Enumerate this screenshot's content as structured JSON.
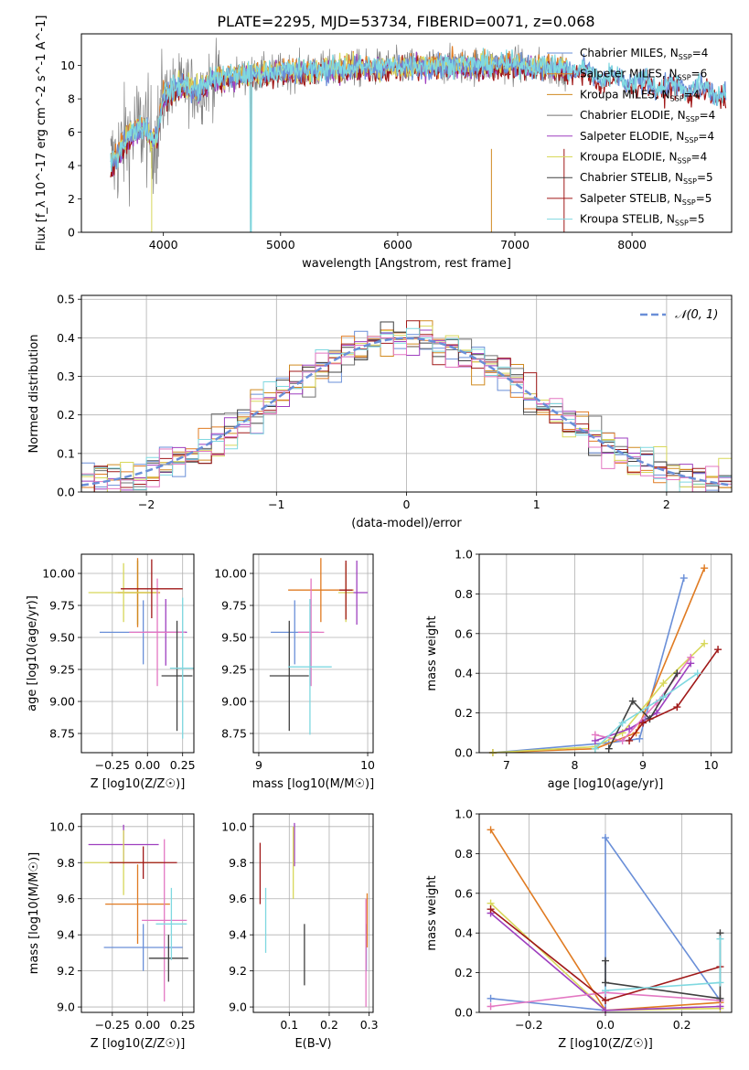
{
  "figure": {
    "title": "PLATE=2295, MJD=53734, FIBERID=0071, z=0.068"
  },
  "legend_colors": [
    "#6a8fd8",
    "#e07b22",
    "#d08a20",
    "#707070",
    "#9e3fbf",
    "#d8d85a",
    "#404040",
    "#a01818",
    "#7fd8e0"
  ],
  "chart_data": [
    {
      "id": "spectrum",
      "type": "line",
      "title": "PLATE=2295, MJD=53734, FIBERID=0071, z=0.068",
      "xlabel": "wavelength [Angstrom, rest frame]",
      "ylabel": "Flux [f_λ 10^-17 erg cm^-2 s^-1 A^-1]",
      "xlim": [
        3300,
        8850
      ],
      "ylim": [
        0,
        11.9
      ],
      "xticks": [
        4000,
        5000,
        6000,
        7000,
        8000
      ],
      "yticks": [
        0,
        2,
        4,
        6,
        8,
        10
      ],
      "grid": false,
      "legend_position": "upper-right",
      "series": [
        {
          "name": "Chabrier MILES, N_SSP=4",
          "color": "#6a8fd8"
        },
        {
          "name": "Salpeter MILES, N_SSP=6",
          "color": "#e07b22"
        },
        {
          "name": "Kroupa MILES, N_SSP=4",
          "color": "#d08a20"
        },
        {
          "name": "Chabrier ELODIE, N_SSP=4",
          "color": "#707070"
        },
        {
          "name": "Salpeter ELODIE, N_SSP=4",
          "color": "#9e3fbf"
        },
        {
          "name": "Kroupa ELODIE, N_SSP=4",
          "color": "#d8d85a"
        },
        {
          "name": "Chabrier STELIB, N_SSP=5",
          "color": "#404040"
        },
        {
          "name": "Salpeter STELIB, N_SSP=5",
          "color": "#a01818"
        },
        {
          "name": "Kroupa STELIB, N_SSP=5",
          "color": "#7fd8e0"
        }
      ],
      "continuum": {
        "x": [
          3550,
          3600,
          3650,
          3700,
          3750,
          3800,
          3850,
          3900,
          3950,
          4000,
          4100,
          4200,
          4300,
          4400,
          4500,
          4700,
          5000,
          5300,
          5600,
          6000,
          6500,
          7000,
          7400,
          7600,
          8000,
          8500,
          8800
        ],
        "y": [
          4.0,
          4.5,
          5.2,
          5.7,
          6.0,
          6.3,
          6.2,
          5.5,
          5.8,
          8.2,
          8.6,
          8.8,
          8.4,
          9.1,
          9.3,
          9.4,
          9.6,
          9.7,
          9.8,
          9.9,
          10.0,
          10.0,
          9.8,
          9.5,
          9.0,
          8.6,
          8.3
        ]
      }
    },
    {
      "id": "residuals",
      "type": "line",
      "xlabel": "(data-model)/error",
      "ylabel": "Normed distribution",
      "xlim": [
        -2.5,
        2.5
      ],
      "ylim": [
        0,
        0.51
      ],
      "xticks": [
        -2,
        -1,
        0,
        1,
        2
      ],
      "yticks": [
        0.0,
        0.1,
        0.2,
        0.3,
        0.4,
        0.5
      ],
      "grid": true,
      "legend_position": "upper-right",
      "legend_label": "𝒩(0, 1)",
      "reference_curve": {
        "name": "𝒩(0, 1)",
        "mean": 0,
        "sigma": 1,
        "color": "#6a8fd8",
        "style": "dashed"
      }
    },
    {
      "id": "age_vs_Z",
      "type": "scatter",
      "xlabel": "Z [log10(Z/Z☉)]",
      "ylabel": "age  [log10(age/yr)]",
      "xlim": [
        -0.47,
        0.33
      ],
      "ylim": [
        8.6,
        10.15
      ],
      "xticks": [
        -0.25,
        0.0,
        0.25
      ],
      "yticks": [
        8.75,
        9.0,
        9.25,
        9.5,
        9.75,
        10.0
      ],
      "points": [
        {
          "x": -0.03,
          "y": 9.54,
          "xerr": 0.31,
          "yerr": 0.25,
          "color": "#6a8fd8"
        },
        {
          "x": -0.07,
          "y": 9.85,
          "xerr": 0.16,
          "yerr": 0.27,
          "color": "#e07b22"
        },
        {
          "x": -0.07,
          "y": 9.85,
          "xerr": 0.14,
          "yerr": 0.25,
          "color": "#d08a20"
        },
        {
          "x": -0.17,
          "y": 9.85,
          "xerr": 0.25,
          "yerr": 0.23,
          "color": "#d8d85a"
        },
        {
          "x": 0.13,
          "y": 9.54,
          "xerr": 0.15,
          "yerr": 0.26,
          "color": "#9e3fbf"
        },
        {
          "x": 0.07,
          "y": 9.54,
          "xerr": 0.2,
          "yerr": 0.42,
          "color": "#e377c2"
        },
        {
          "x": 0.21,
          "y": 9.2,
          "xerr": 0.11,
          "yerr": 0.43,
          "color": "#404040"
        },
        {
          "x": 0.03,
          "y": 9.88,
          "xerr": 0.22,
          "yerr": 0.23,
          "color": "#a01818"
        },
        {
          "x": 0.25,
          "y": 9.26,
          "xerr": 0.09,
          "yerr": 0.55,
          "color": "#7fd8e0"
        }
      ]
    },
    {
      "id": "age_vs_mass",
      "type": "scatter",
      "xlabel": "mass [log10(M/M☉)]",
      "ylabel": "",
      "xlim": [
        8.95,
        10.05
      ],
      "ylim": [
        8.6,
        10.15
      ],
      "xticks": [
        9,
        10
      ],
      "yticks": [
        8.75,
        9.0,
        9.25,
        9.5,
        9.75,
        10.0
      ],
      "points": [
        {
          "x": 9.33,
          "y": 9.54,
          "xerr": 0.22,
          "yerr": 0.25,
          "color": "#6a8fd8"
        },
        {
          "x": 9.57,
          "y": 9.87,
          "xerr": 0.3,
          "yerr": 0.25,
          "color": "#e07b22"
        },
        {
          "x": 9.9,
          "y": 9.85,
          "xerr": 0.1,
          "yerr": 0.25,
          "color": "#9e3fbf"
        },
        {
          "x": 9.8,
          "y": 9.85,
          "xerr": 0.07,
          "yerr": 0.23,
          "color": "#d8d85a"
        },
        {
          "x": 9.48,
          "y": 9.54,
          "xerr": 0.12,
          "yerr": 0.42,
          "color": "#e377c2"
        },
        {
          "x": 9.28,
          "y": 9.2,
          "xerr": 0.18,
          "yerr": 0.43,
          "color": "#404040"
        },
        {
          "x": 9.8,
          "y": 9.87,
          "xerr": 0.06,
          "yerr": 0.23,
          "color": "#a01818"
        },
        {
          "x": 9.47,
          "y": 9.27,
          "xerr": 0.2,
          "yerr": 0.53,
          "color": "#7fd8e0"
        }
      ]
    },
    {
      "id": "weight_vs_age",
      "type": "line",
      "xlabel": "age  [log10(age/yr)]",
      "ylabel": "mass weight",
      "xlim": [
        6.6,
        10.3
      ],
      "ylim": [
        0,
        1.0
      ],
      "xticks": [
        7,
        8,
        9,
        10
      ],
      "yticks": [
        0.0,
        0.2,
        0.4,
        0.6,
        0.8,
        1.0
      ],
      "grid": true,
      "series": [
        {
          "color": "#6a8fd8",
          "x": [
            6.8,
            8.5,
            8.95,
            9.6
          ],
          "y": [
            0.0,
            0.05,
            0.07,
            0.88
          ]
        },
        {
          "color": "#e07b22",
          "x": [
            6.8,
            8.3,
            8.9,
            9.9
          ],
          "y": [
            0.0,
            0.02,
            0.1,
            0.93
          ]
        },
        {
          "color": "#d8d85a",
          "x": [
            6.8,
            8.3,
            8.7,
            9.3,
            9.9
          ],
          "y": [
            0.0,
            0.03,
            0.1,
            0.35,
            0.55
          ]
        },
        {
          "color": "#9e3fbf",
          "x": [
            8.3,
            8.8,
            9.2,
            9.7
          ],
          "y": [
            0.06,
            0.12,
            0.2,
            0.45
          ]
        },
        {
          "color": "#e377c2",
          "x": [
            8.3,
            8.7,
            9.2,
            9.7
          ],
          "y": [
            0.09,
            0.06,
            0.25,
            0.48
          ]
        },
        {
          "color": "#404040",
          "x": [
            8.5,
            8.85,
            9.1,
            9.5
          ],
          "y": [
            0.02,
            0.26,
            0.17,
            0.4
          ]
        },
        {
          "color": "#a01818",
          "x": [
            8.8,
            9.0,
            9.5,
            10.1
          ],
          "y": [
            0.06,
            0.15,
            0.23,
            0.52
          ]
        },
        {
          "color": "#7fd8e0",
          "x": [
            8.3,
            8.7,
            9.3,
            9.8
          ],
          "y": [
            0.02,
            0.15,
            0.28,
            0.4
          ]
        }
      ]
    },
    {
      "id": "mass_vs_Z",
      "type": "scatter",
      "xlabel": "Z [log10(Z/Z☉)]",
      "ylabel": "mass [log10(M/M☉)]",
      "xlim": [
        -0.47,
        0.33
      ],
      "ylim": [
        8.97,
        10.07
      ],
      "xticks": [
        -0.25,
        0.0,
        0.25
      ],
      "yticks": [
        9.0,
        9.2,
        9.4,
        9.6,
        9.8,
        10.0
      ],
      "points": [
        {
          "x": -0.03,
          "y": 9.33,
          "xerr": 0.28,
          "yerr": 0.13,
          "color": "#6a8fd8"
        },
        {
          "x": -0.07,
          "y": 9.57,
          "xerr": 0.23,
          "yerr": 0.22,
          "color": "#e07b22"
        },
        {
          "x": -0.17,
          "y": 9.9,
          "xerr": 0.25,
          "yerr": 0.11,
          "color": "#9e3fbf"
        },
        {
          "x": -0.17,
          "y": 9.8,
          "xerr": 0.28,
          "yerr": 0.18,
          "color": "#d8d85a"
        },
        {
          "x": 0.12,
          "y": 9.48,
          "xerr": 0.16,
          "yerr": 0.45,
          "color": "#e377c2"
        },
        {
          "x": 0.15,
          "y": 9.27,
          "xerr": 0.14,
          "yerr": 0.13,
          "color": "#404040"
        },
        {
          "x": -0.03,
          "y": 9.8,
          "xerr": 0.24,
          "yerr": 0.09,
          "color": "#a01818"
        },
        {
          "x": 0.17,
          "y": 9.46,
          "xerr": 0.11,
          "yerr": 0.2,
          "color": "#7fd8e0"
        }
      ]
    },
    {
      "id": "mass_vs_EBV",
      "type": "scatter",
      "xlabel": "E(B-V)",
      "ylabel": "",
      "xlim": [
        0.01,
        0.31
      ],
      "ylim": [
        8.97,
        10.07
      ],
      "xticks": [
        0.1,
        0.2,
        0.3
      ],
      "yticks": [
        9.0,
        9.2,
        9.4,
        9.6,
        9.8,
        10.0
      ],
      "points": [
        {
          "x": 0.293,
          "y": 9.33,
          "yerr": 0.13,
          "color": "#6a8fd8"
        },
        {
          "x": 0.295,
          "y": 9.48,
          "yerr": 0.15,
          "color": "#e07b22"
        },
        {
          "x": 0.113,
          "y": 9.9,
          "yerr": 0.12,
          "color": "#9e3fbf"
        },
        {
          "x": 0.11,
          "y": 9.8,
          "yerr": 0.2,
          "color": "#d8d85a"
        },
        {
          "x": 0.292,
          "y": 9.3,
          "yerr": 0.3,
          "color": "#e377c2"
        },
        {
          "x": 0.138,
          "y": 9.29,
          "yerr": 0.17,
          "color": "#404040"
        },
        {
          "x": 0.027,
          "y": 9.74,
          "yerr": 0.17,
          "color": "#a01818"
        },
        {
          "x": 0.041,
          "y": 9.48,
          "yerr": 0.18,
          "color": "#7fd8e0"
        }
      ]
    },
    {
      "id": "weight_vs_Z",
      "type": "line",
      "xlabel": "Z [log10(Z/Z☉)]",
      "ylabel": "mass weight",
      "xlim": [
        -0.33,
        0.33
      ],
      "ylim": [
        0,
        1.0
      ],
      "xticks": [
        -0.2,
        0.0,
        0.2
      ],
      "yticks": [
        0.0,
        0.2,
        0.4,
        0.6,
        0.8,
        1.0
      ],
      "grid": true,
      "series": [
        {
          "color": "#6a8fd8",
          "x": [
            -0.3,
            0.0,
            0.0,
            0.3
          ],
          "y": [
            0.07,
            0.01,
            0.88,
            0.06
          ]
        },
        {
          "color": "#e07b22",
          "x": [
            -0.3,
            0.0,
            0.3
          ],
          "y": [
            0.92,
            0.01,
            0.05
          ]
        },
        {
          "color": "#d8d85a",
          "x": [
            -0.3,
            0.0,
            0.3
          ],
          "y": [
            0.55,
            0.01,
            0.02
          ]
        },
        {
          "color": "#9e3fbf",
          "x": [
            -0.3,
            0.0,
            0.3
          ],
          "y": [
            0.5,
            0.01,
            0.03
          ]
        },
        {
          "color": "#e377c2",
          "x": [
            -0.3,
            0.0,
            0.3
          ],
          "y": [
            0.03,
            0.1,
            0.06
          ]
        },
        {
          "color": "#404040",
          "x": [
            0.0,
            0.0,
            0.3,
            0.3
          ],
          "y": [
            0.26,
            0.15,
            0.07,
            0.4
          ]
        },
        {
          "color": "#a01818",
          "x": [
            -0.3,
            0.0,
            0.3
          ],
          "y": [
            0.52,
            0.06,
            0.23
          ]
        },
        {
          "color": "#7fd8e0",
          "x": [
            0.0,
            0.3,
            0.3
          ],
          "y": [
            0.11,
            0.15,
            0.37
          ]
        }
      ]
    }
  ]
}
